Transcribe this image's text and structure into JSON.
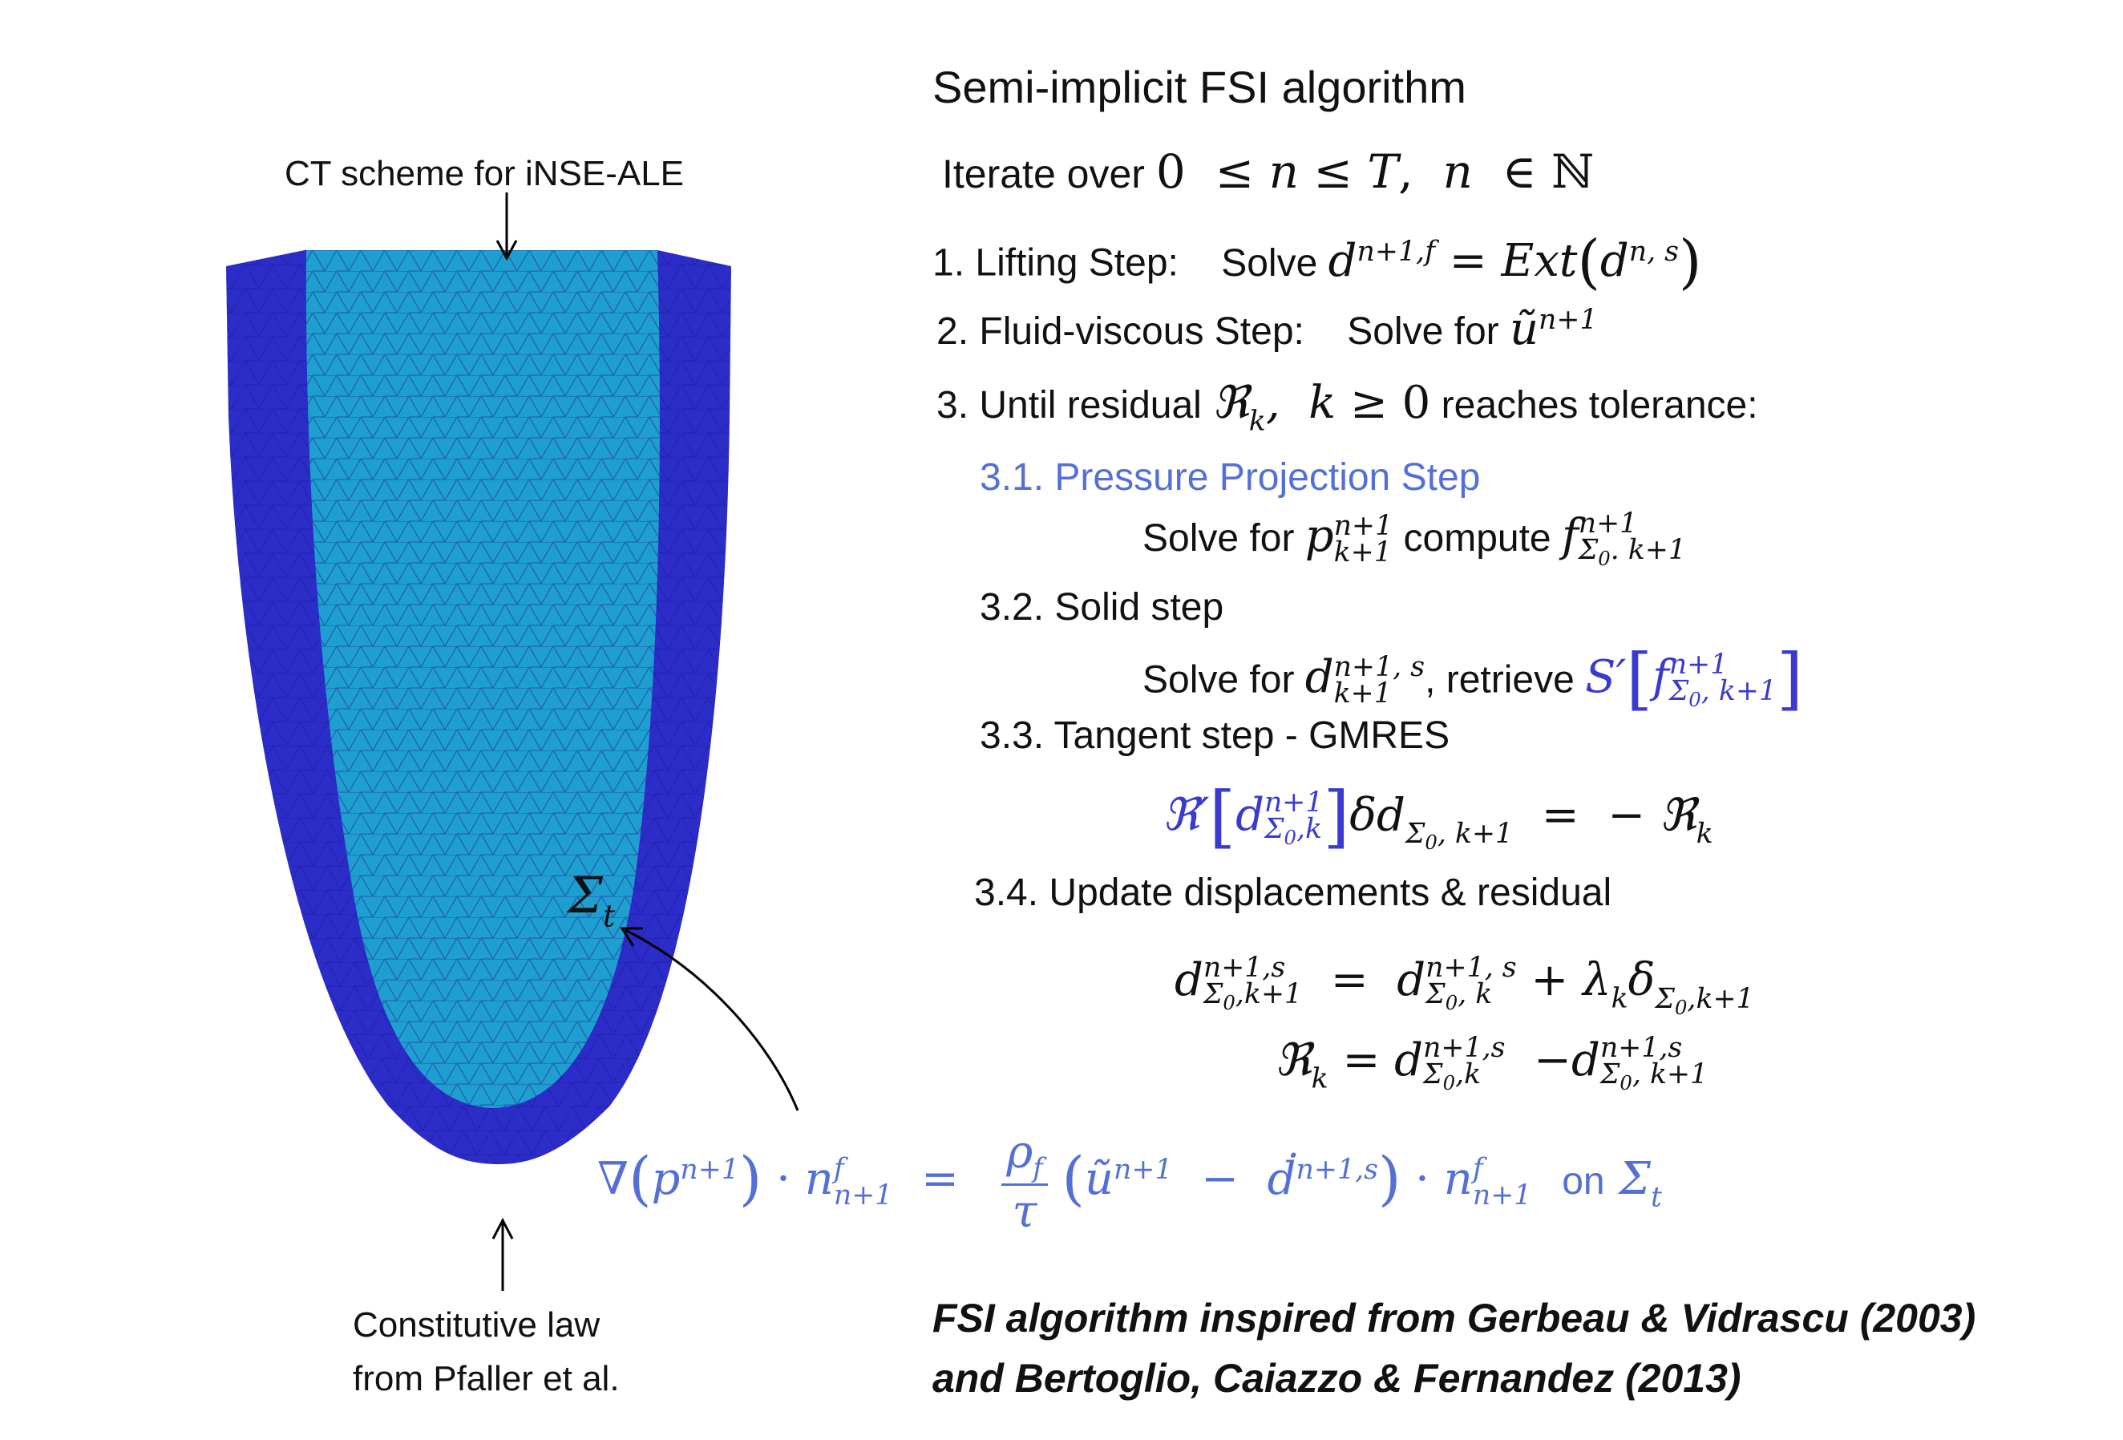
{
  "left": {
    "ct_label": "CT scheme for iNSE-ALE",
    "constitutive_line1": "Constitutive law",
    "constitutive_line2": "from Pfaller et al.",
    "sigma": "Σ",
    "sigma_sub": "t"
  },
  "algorithm": {
    "title": "Semi-implicit FSI algorithm",
    "iterate_label": "Iterate over",
    "step1_label": "1. Lifting Step:",
    "step1_solve": "Solve",
    "step2_label": "2. Fluid-viscous Step:",
    "step2_solve": "Solve for",
    "step3_label": "3. Until residual",
    "step3_tail": "reaches tolerance:",
    "step31_label": "3.1. Pressure Projection Step",
    "step31_solve": "Solve for",
    "step31_compute": "compute",
    "step32_label": "3.2. Solid step",
    "step32_solve": "Solve for",
    "step32_retrieve": ", retrieve",
    "step33_label": "3.3. Tangent step - GMRES",
    "step34_label": "3.4. Update displacements & residual"
  },
  "bottom_equation": {
    "on_label": "on"
  },
  "citation": {
    "line1": "FSI algorithm inspired from Gerbeau & Vidrascu (2003)",
    "line2": "and Bertoglio, Caiazzo & Fernandez (2013)"
  },
  "colors": {
    "outer_mesh": "#2c2cc8",
    "inner_mesh": "#1f9fcf",
    "formula_blue": "#5470d6",
    "operator_blue": "#3a3ad0"
  }
}
